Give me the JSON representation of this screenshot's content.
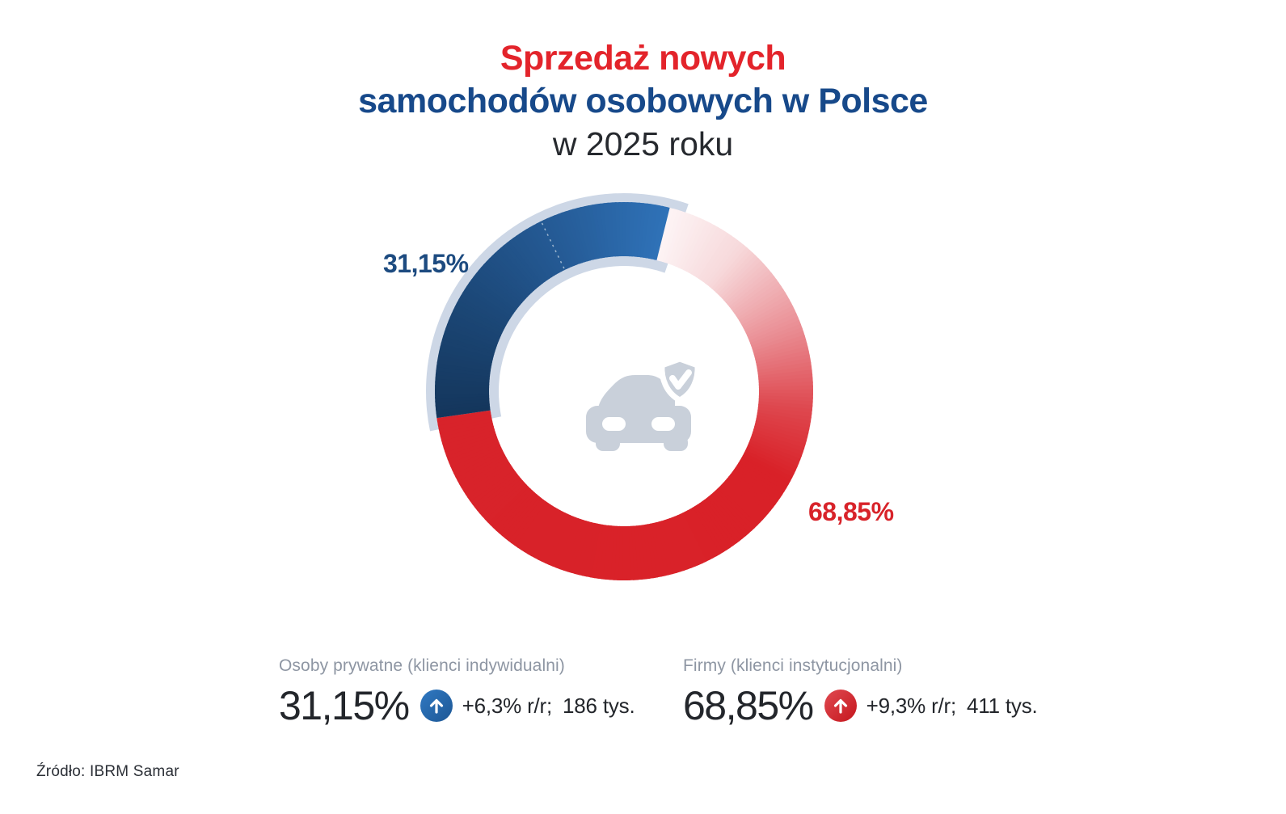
{
  "title": {
    "line1": "Sprzedaż nowych",
    "line2": "samochodów osobowych w Polsce",
    "line3": "w 2025 roku",
    "line1_color": "#e3242b",
    "line2_color": "#17498a",
    "line3_color": "#26292e"
  },
  "chart_data": {
    "type": "pie",
    "subtype": "donut",
    "title": "Sprzedaż nowych samochodów osobowych w Polsce w 2025 roku",
    "categories": [
      "Firmy (klienci instytucjonalni)",
      "Osoby prywatne (klienci indywidualni)"
    ],
    "values": [
      68.85,
      31.15
    ],
    "units": "%",
    "start_angle_deg": 14,
    "direction": "clockwise",
    "legend_position": "below",
    "segments": [
      {
        "name": "Firmy (klienci instytucjonalni)",
        "value_pct": 68.85,
        "label": "68,85%",
        "label_color": "#d8232a",
        "gradient": [
          [
            0,
            "#fdf4f5"
          ],
          [
            0.1,
            "#f7d9db"
          ],
          [
            0.22,
            "#ea9096"
          ],
          [
            0.33,
            "#de474e"
          ],
          [
            0.42,
            "#d92128"
          ],
          [
            1,
            "#d8232a"
          ]
        ]
      },
      {
        "name": "Osoby prywatne (klienci indywidualni)",
        "value_pct": 31.15,
        "label": "31,15%",
        "label_color": "#1d4b80",
        "gradient": [
          [
            0,
            "#14365c"
          ],
          [
            0.35,
            "#1c4878"
          ],
          [
            0.7,
            "#265d99"
          ],
          [
            1,
            "#2f72b8"
          ]
        ]
      }
    ],
    "track": {
      "color": "#cdd7e6",
      "behind_segment": "Osoby prywatne (klienci indywidualni)",
      "overshoot_deg_start": 3.5,
      "overshoot_deg_end": 5
    },
    "divider": {
      "angle_deg": 334,
      "style": "dashed-white"
    },
    "center_icon": {
      "name": "car-with-shield-check",
      "color": "#c9d0da"
    }
  },
  "stats": {
    "left": {
      "label": "Osoby prywatne (klienci indywidualni)",
      "value": "31,15%",
      "trend": "up",
      "trend_icon": "arrow-up-circle",
      "accent": "#2266ab",
      "change": "+6,3% r/r;",
      "volume": "186 tys."
    },
    "right": {
      "label": "Firmy (klienci instytucjonalni)",
      "value": "68,85%",
      "trend": "up",
      "trend_icon": "arrow-up-circle",
      "accent": "#d8262c",
      "change": "+9,3% r/r;",
      "volume": "411 tys."
    }
  },
  "source": {
    "text": "Źródło: IBRM Samar"
  }
}
